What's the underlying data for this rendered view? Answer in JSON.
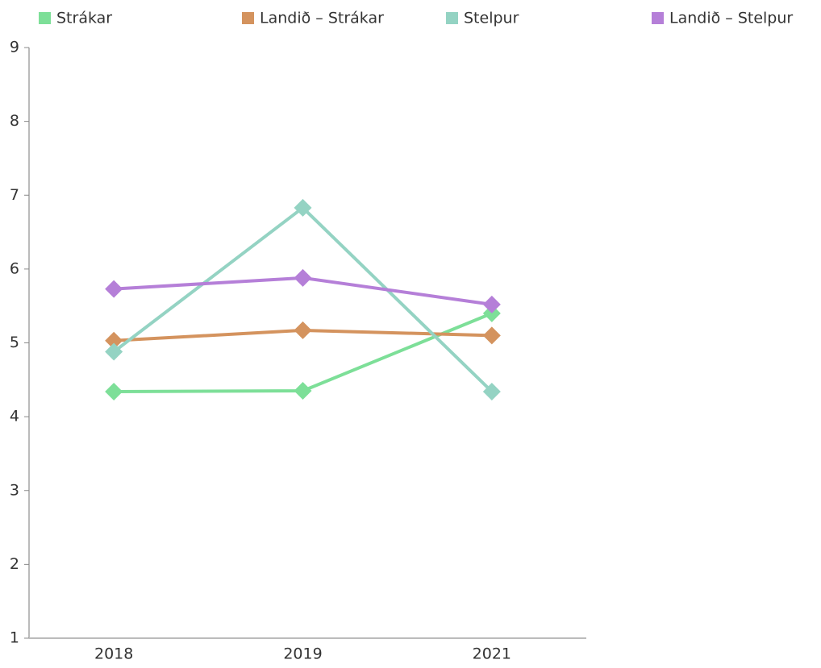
{
  "chart_data": {
    "type": "line",
    "categories": [
      "2018",
      "2019",
      "2021"
    ],
    "series": [
      {
        "name": "Strákar",
        "color": "#7ddf98",
        "values": [
          4.34,
          4.35,
          5.4
        ]
      },
      {
        "name": "Landið – Strákar",
        "color": "#d4935e",
        "values": [
          5.03,
          5.17,
          5.1
        ]
      },
      {
        "name": "Stelpur",
        "color": "#94d3c3",
        "values": [
          4.88,
          6.83,
          4.34
        ]
      },
      {
        "name": "Landið – Stelpur",
        "color": "#b57fd8",
        "values": [
          5.73,
          5.88,
          5.52
        ]
      }
    ],
    "ylim": [
      1,
      9
    ],
    "yticks": [
      1,
      2,
      3,
      4,
      5,
      6,
      7,
      8,
      9
    ],
    "grid": false,
    "legend": "top"
  }
}
